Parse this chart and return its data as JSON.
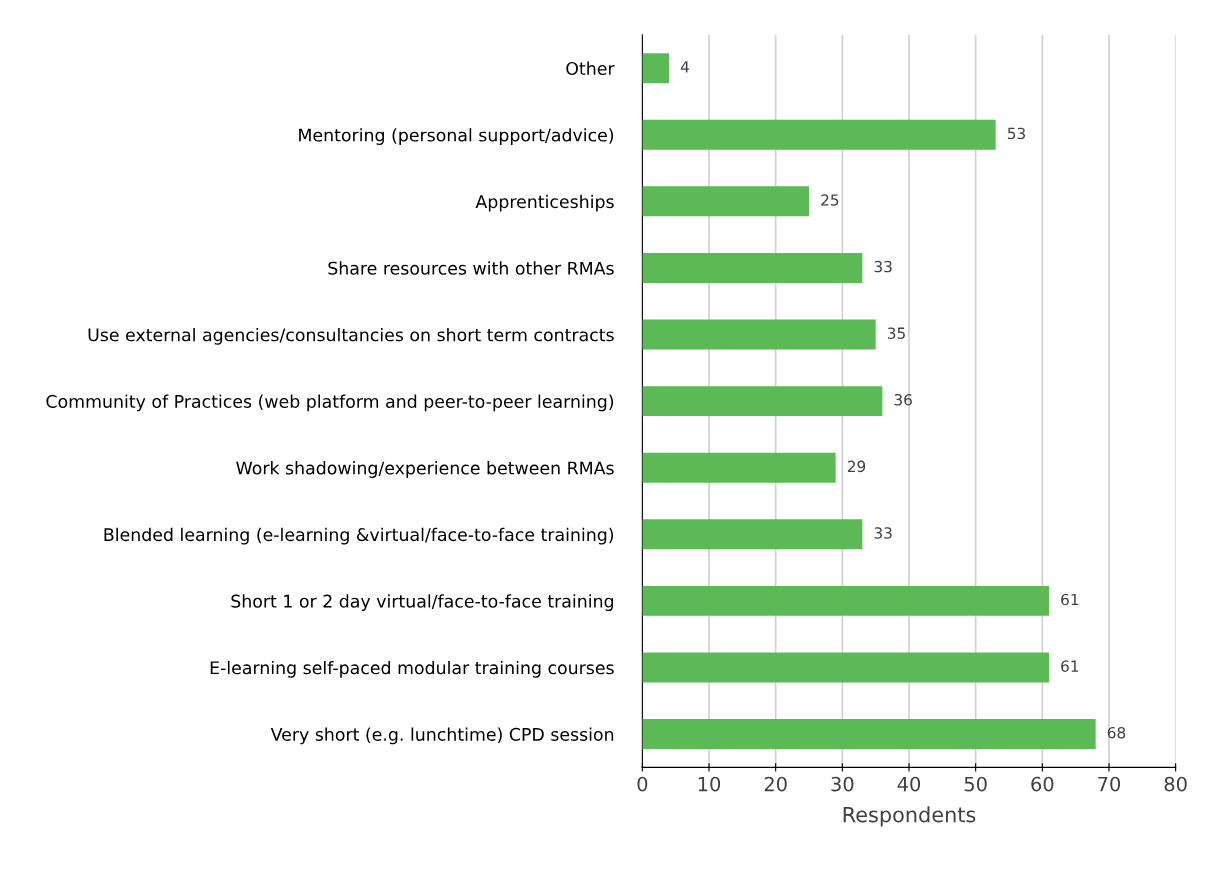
{
  "chart_data": {
    "type": "bar",
    "orientation": "horizontal",
    "categories": [
      "Other",
      "Mentoring (personal support/advice)",
      "Apprenticeships",
      "Share resources with other RMAs",
      "Use external agencies/consultancies on short term contracts",
      "Community of Practices (web platform and peer-to-peer learning)",
      "Work shadowing/experience between RMAs",
      "Blended learning (e-learning &virtual/face-to-face training)",
      "Short 1 or 2 day virtual/face-to-face training",
      "E-learning self-paced modular training courses",
      "Very short (e.g. lunchtime) CPD session"
    ],
    "values": [
      4,
      53,
      25,
      33,
      35,
      36,
      29,
      33,
      61,
      61,
      68
    ],
    "color": "#5bba55",
    "xlim": [
      0,
      80
    ],
    "xticks": [
      0,
      10,
      20,
      30,
      40,
      50,
      60,
      70,
      80
    ],
    "xlabel": "Respondents",
    "grid": "x",
    "data_labels": true
  }
}
